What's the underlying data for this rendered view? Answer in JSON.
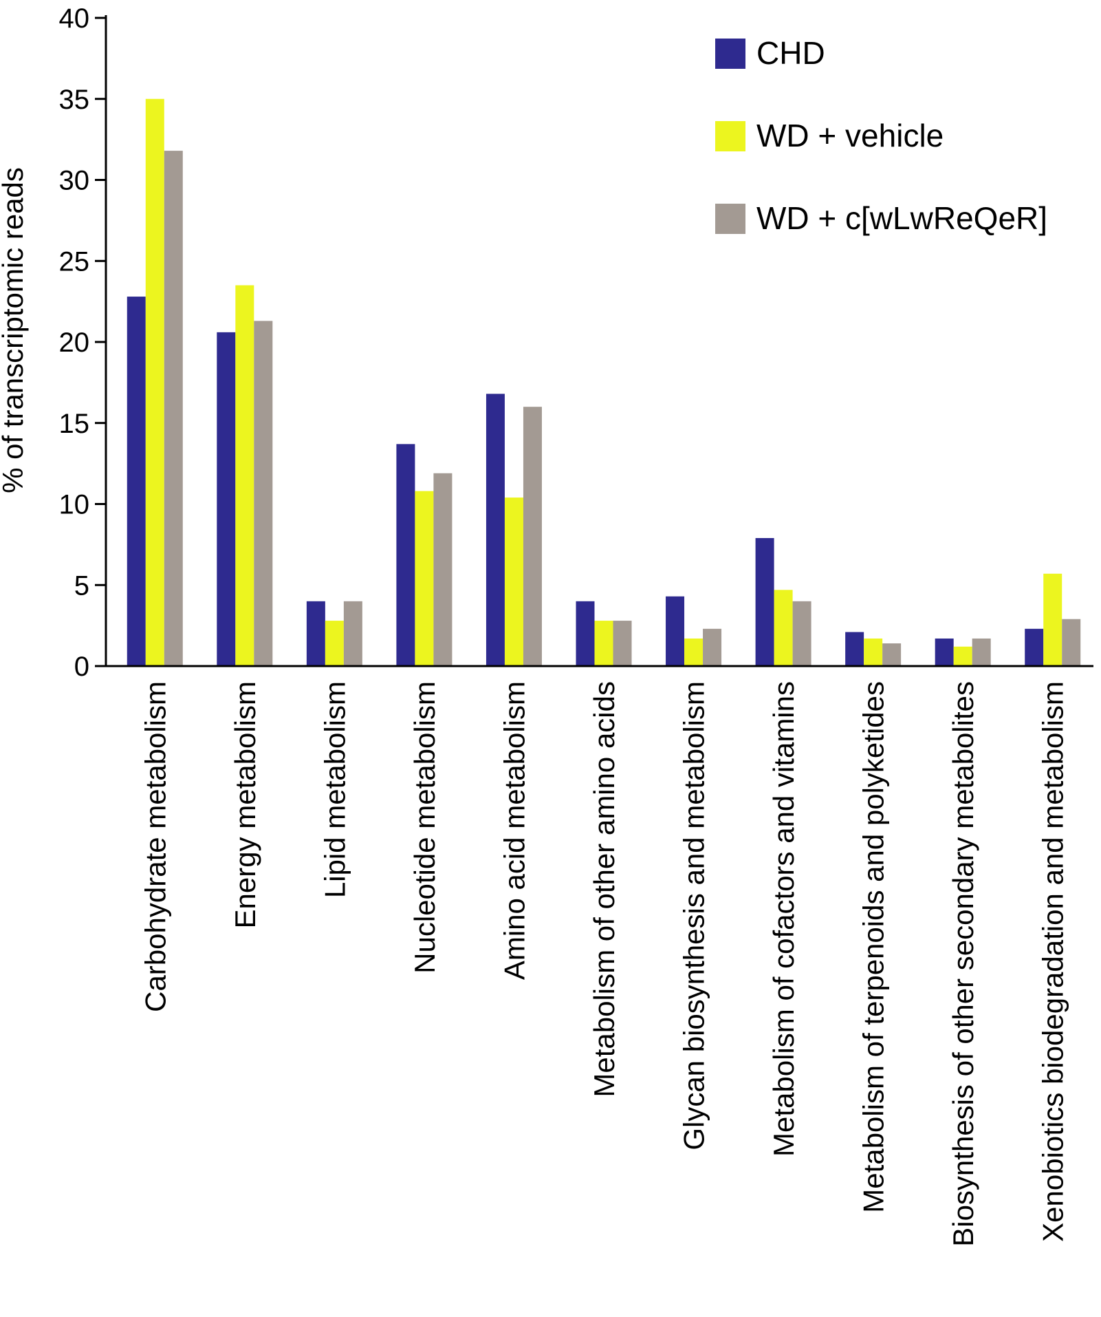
{
  "chart_data": {
    "type": "bar",
    "title": "",
    "xlabel": "",
    "ylabel": "% of transcriptomic reads",
    "ylim": [
      0,
      40
    ],
    "yticks": [
      0,
      5,
      10,
      15,
      20,
      25,
      30,
      35,
      40
    ],
    "ytick_labels": [
      "0",
      "5",
      "10",
      "15",
      "20",
      "25",
      "30",
      "35",
      "40"
    ],
    "grid": false,
    "legend_position": "top-right",
    "categories": [
      "Carbohydrate metabolism",
      "Energy metabolism",
      "Lipid metabolism",
      "Nucleotide metabolism",
      "Amino acid metabolism",
      "Metabolism of other amino acids",
      "Glycan biosynthesis and metabolism",
      "Metabolism of cofactors and vitamins",
      "Metabolism of terpenoids and polyketides",
      "Biosynthesis of other secondary metabolites",
      "Xenobiotics biodegradation and metabolism"
    ],
    "series": [
      {
        "name": "CHD",
        "color": "#2e2a8f",
        "values": [
          22.8,
          20.6,
          4.0,
          13.7,
          16.8,
          4.0,
          4.3,
          7.9,
          2.1,
          1.7,
          2.3
        ]
      },
      {
        "name": "WD + vehicle",
        "color": "#ecf51f",
        "values": [
          35.0,
          23.5,
          2.8,
          10.8,
          10.4,
          2.8,
          1.7,
          4.7,
          1.7,
          1.2,
          5.7
        ]
      },
      {
        "name": "WD + c[wLwReQeR]",
        "color": "#a39a93",
        "values": [
          31.8,
          21.3,
          4.0,
          11.9,
          16.0,
          2.8,
          2.3,
          4.0,
          1.4,
          1.7,
          2.9
        ]
      }
    ]
  }
}
